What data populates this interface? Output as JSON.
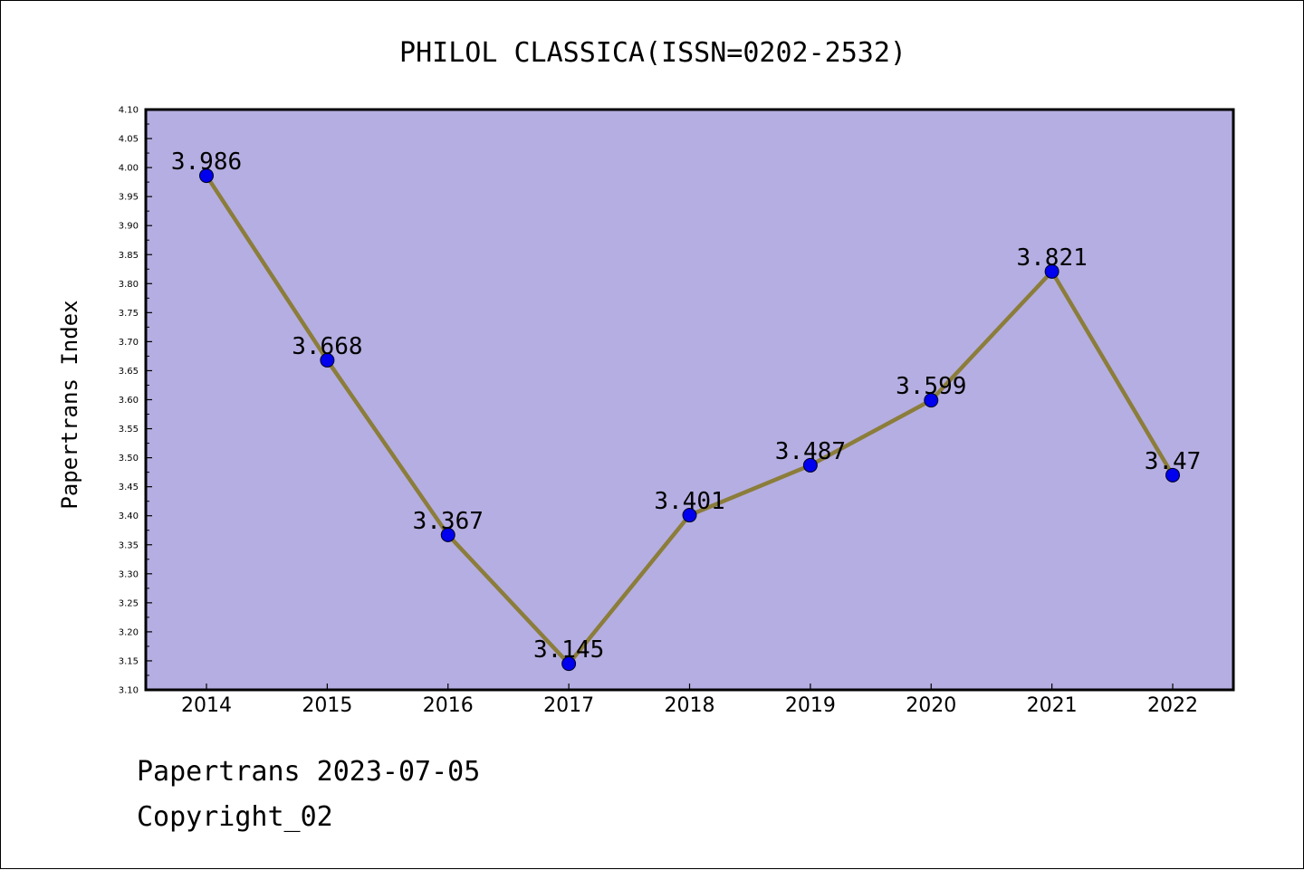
{
  "chart_data": {
    "type": "line",
    "title": "PHILOL CLASSICA(ISSN=0202-2532)",
    "xlabel": "",
    "ylabel": "Papertrans Index",
    "categories": [
      "2014",
      "2015",
      "2016",
      "2017",
      "2018",
      "2019",
      "2020",
      "2021",
      "2022"
    ],
    "series": [
      {
        "values": [
          3.986,
          3.668,
          3.367,
          3.145,
          3.401,
          3.487,
          3.599,
          3.821,
          3.47
        ],
        "labels": [
          "3.986",
          "3.668",
          "3.367",
          "3.145",
          "3.401",
          "3.487",
          "3.599",
          "3.821",
          "3.47"
        ]
      }
    ],
    "ylim": [
      3.1,
      4.1
    ],
    "yticks": [
      "3.10",
      "3.15",
      "3.20",
      "3.25",
      "3.30",
      "3.35",
      "3.40",
      "3.45",
      "3.50",
      "3.55",
      "3.60",
      "3.65",
      "3.70",
      "3.75",
      "3.80",
      "3.85",
      "3.90",
      "3.95",
      "4.00",
      "4.05",
      "4.10"
    ],
    "grid": false,
    "colors": {
      "plot_background": "#b5aee2",
      "line": "#8b7d3a",
      "marker": "#0000ee"
    }
  },
  "footer": {
    "date_text": "Papertrans 2023-07-05",
    "copyright_text": "Copyright_02"
  }
}
